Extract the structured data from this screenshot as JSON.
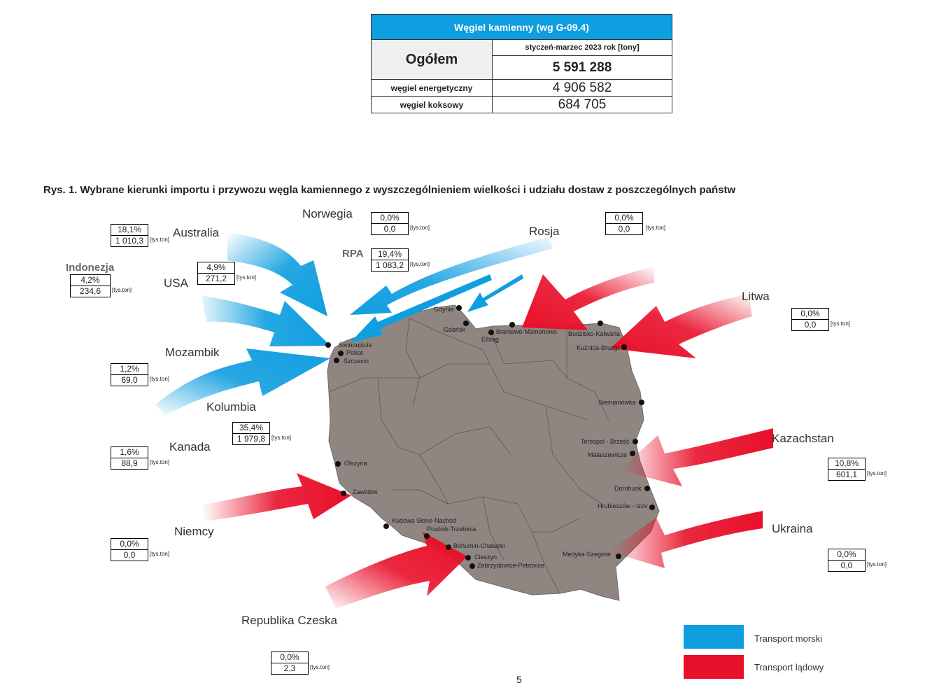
{
  "summary": {
    "title": "Węgiel kamienny (wg G-09.4)",
    "total_label": "Ogółem",
    "period": "styczeń-marzec 2023 rok [tony]",
    "total_value": "5 591 288",
    "rows": [
      {
        "label": "węgiel energetyczny",
        "value": "4 906 582"
      },
      {
        "label": "węgiel koksowy",
        "value": "684 705"
      }
    ]
  },
  "caption": "Rys. 1.   Wybrane kierunki importu i przywozu węgla kamiennego z wyszczególnieniem wielkości i udziału dostaw z poszczególnych państw",
  "unit": "[tys.ton]",
  "countries": {
    "norwegia": {
      "name": "Norwegia",
      "share": "0,0%",
      "value": "0,0"
    },
    "australia": {
      "name": "Australia",
      "share": "18,1%",
      "value": "1 010,3"
    },
    "indonezja": {
      "name": "Indonezja",
      "share": "4,2%",
      "value": "234,6"
    },
    "usa": {
      "name": "USA",
      "share": "4,9%",
      "value": "271,2"
    },
    "rpa": {
      "name": "RPA",
      "share": "19,4%",
      "value": "1 083,2"
    },
    "rosja": {
      "name": "Rosja",
      "share": "0,0%",
      "value": "0,0"
    },
    "litwa": {
      "name": "Litwa",
      "share": "0,0%",
      "value": "0,0"
    },
    "mozambik": {
      "name": "Mozambik",
      "share": "1,2%",
      "value": "69,0"
    },
    "kolumbia": {
      "name": "Kolumbia",
      "share": "35,4%",
      "value": "1 979,8"
    },
    "kanada": {
      "name": "Kanada",
      "share": "1,6%",
      "value": "88,9"
    },
    "kazachstan": {
      "name": "Kazachstan",
      "share": "10,8%",
      "value": "601,1"
    },
    "niemcy": {
      "name": "Niemcy",
      "share": "0,0%",
      "value": "0,0"
    },
    "ukraina": {
      "name": "Ukraina",
      "share": "0,0%",
      "value": "0,0"
    },
    "czechy": {
      "name": "Republika Czeska",
      "share": "0,0%",
      "value": "2,3"
    }
  },
  "cities": [
    "Gdynia",
    "Gdańsk",
    "Elbląg",
    "Braniewo-Mamonowo",
    "Budzisko-Kalwaria",
    "Kuźnica-Bruzgi",
    "Świnoujście",
    "Police",
    "Szczecin",
    "Siemianówka",
    "Terespol - Brześć",
    "Małaszewicze",
    "Dorohusk",
    "Hrubieszów - Izov",
    "Olszyna",
    "Zawidów",
    "Kudowa Słone-Nachod",
    "Prudnik-Trzebinia",
    "Bohumin-Chałupki",
    "Cieszyn",
    "Zebrzydowice-Petrovice",
    "Medyka-Szeginie"
  ],
  "legend": {
    "sea": {
      "label": "Transport morski",
      "color": "#0f9ee0"
    },
    "land": {
      "label": "Transport lądowy",
      "color": "#e8102a"
    }
  },
  "map_color": "#8f8682",
  "page_number": "5"
}
